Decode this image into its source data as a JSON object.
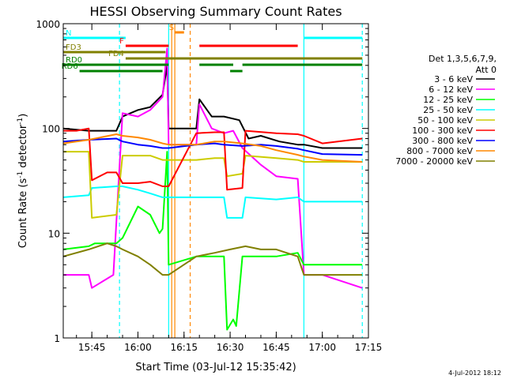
{
  "chart_data": {
    "type": "line",
    "title": "HESSI Observing Summary Count Rates",
    "xlabel": "Start Time (03-Jul-12 15:35:42)",
    "ylabel": "Count Rate (s-1 detector-1)",
    "ylabel_parts": {
      "main": "Count Rate (s",
      "sup1": "-1",
      "mid": " detector",
      "sup2": "-1",
      "end": ")"
    },
    "yscale": "log",
    "xlim": [
      "15:35:42",
      "17:15:00"
    ],
    "ylim": [
      1,
      1000
    ],
    "xticks": [
      "15:45",
      "16:00",
      "16:15",
      "16:30",
      "16:45",
      "17:00",
      "17:15"
    ],
    "yticks": [
      "1",
      "10",
      "100",
      "1000"
    ],
    "footer": "4-Jul-2012 18:12",
    "legend": {
      "placement": "right",
      "header1": "Det 1,3,5,6,7,9,",
      "header2": "Att 0"
    },
    "series": [
      {
        "name": "3 - 6 keV",
        "color": "#000000",
        "points": [
          [
            "15:35:42",
            100
          ],
          [
            "15:44",
            95
          ],
          [
            "15:53",
            95
          ],
          [
            "15:55",
            130
          ],
          [
            "16:00",
            150
          ],
          [
            "16:04",
            160
          ],
          [
            "16:08",
            210
          ],
          [
            "16:09:30",
            400
          ],
          [
            "16:10",
            100
          ],
          [
            "16:19",
            100
          ],
          [
            "16:20",
            190
          ],
          [
            "16:24",
            130
          ],
          [
            "16:28",
            130
          ],
          [
            "16:33",
            120
          ],
          [
            "16:36",
            80
          ],
          [
            "16:40",
            85
          ],
          [
            "16:46",
            75
          ],
          [
            "16:52",
            70
          ],
          [
            "16:54",
            70
          ],
          [
            "17:00",
            65
          ],
          [
            "17:13",
            65
          ]
        ]
      },
      {
        "name": "6 - 12 keV",
        "color": "#ff00ff",
        "points": [
          [
            "15:35:42",
            4
          ],
          [
            "15:44",
            4
          ],
          [
            "15:45",
            3
          ],
          [
            "15:52",
            4
          ],
          [
            "15:55",
            140
          ],
          [
            "16:00",
            130
          ],
          [
            "16:04",
            150
          ],
          [
            "16:08",
            200
          ],
          [
            "16:09:30",
            580
          ],
          [
            "16:10",
            70
          ],
          [
            "16:19",
            70
          ],
          [
            "16:20",
            170
          ],
          [
            "16:24",
            100
          ],
          [
            "16:28",
            90
          ],
          [
            "16:31",
            95
          ],
          [
            "16:34",
            65
          ],
          [
            "16:40",
            45
          ],
          [
            "16:45",
            35
          ],
          [
            "16:52",
            33
          ],
          [
            "16:54",
            4
          ],
          [
            "17:00",
            4
          ],
          [
            "17:13",
            3
          ]
        ]
      },
      {
        "name": "12 - 25 keV",
        "color": "#00ff00",
        "points": [
          [
            "15:35:42",
            7
          ],
          [
            "15:44",
            7.5
          ],
          [
            "15:46",
            8
          ],
          [
            "15:53",
            8
          ],
          [
            "15:55",
            9
          ],
          [
            "16:00",
            18
          ],
          [
            "16:04",
            15
          ],
          [
            "16:07",
            10
          ],
          [
            "16:08",
            11
          ],
          [
            "16:09:30",
            60
          ],
          [
            "16:10",
            5
          ],
          [
            "16:19",
            6
          ],
          [
            "16:25",
            6
          ],
          [
            "16:28",
            6
          ],
          [
            "16:29",
            1.2
          ],
          [
            "16:31",
            1.5
          ],
          [
            "16:32",
            1.3
          ],
          [
            "16:34",
            6
          ],
          [
            "16:40",
            6
          ],
          [
            "16:45",
            6
          ],
          [
            "16:52",
            6.5
          ],
          [
            "16:54",
            5
          ],
          [
            "17:00",
            5
          ],
          [
            "17:13",
            5
          ]
        ]
      },
      {
        "name": "25 - 50 keV",
        "color": "#00ffff",
        "points": [
          [
            "15:35:42",
            22
          ],
          [
            "15:44",
            23
          ],
          [
            "15:45",
            27
          ],
          [
            "15:53",
            28
          ],
          [
            "15:55",
            28
          ],
          [
            "16:00",
            26
          ],
          [
            "16:04",
            24
          ],
          [
            "16:08",
            22
          ],
          [
            "16:10",
            22
          ],
          [
            "16:19",
            22
          ],
          [
            "16:25",
            22
          ],
          [
            "16:28",
            22
          ],
          [
            "16:29",
            14
          ],
          [
            "16:34",
            14
          ],
          [
            "16:35",
            22
          ],
          [
            "16:45",
            21
          ],
          [
            "16:52",
            22
          ],
          [
            "16:54",
            20
          ],
          [
            "17:00",
            20
          ],
          [
            "17:13",
            20
          ]
        ]
      },
      {
        "name": "50 - 100 keV",
        "color": "#cccc00",
        "points": [
          [
            "15:35:42",
            60
          ],
          [
            "15:44",
            60
          ],
          [
            "15:45",
            14
          ],
          [
            "15:53",
            15
          ],
          [
            "15:55",
            55
          ],
          [
            "16:00",
            55
          ],
          [
            "16:04",
            55
          ],
          [
            "16:08",
            50
          ],
          [
            "16:10",
            50
          ],
          [
            "16:19",
            50
          ],
          [
            "16:25",
            52
          ],
          [
            "16:28",
            52
          ],
          [
            "16:29",
            35
          ],
          [
            "16:34",
            37
          ],
          [
            "16:35",
            55
          ],
          [
            "16:45",
            52
          ],
          [
            "16:52",
            50
          ],
          [
            "16:54",
            48
          ],
          [
            "17:00",
            48
          ],
          [
            "17:13",
            48
          ]
        ]
      },
      {
        "name": "100 - 300 keV",
        "color": "#ff0000",
        "points": [
          [
            "15:35:42",
            95
          ],
          [
            "15:40",
            95
          ],
          [
            "15:44",
            100
          ],
          [
            "15:45",
            32
          ],
          [
            "15:50",
            38
          ],
          [
            "15:53",
            38
          ],
          [
            "15:55",
            30
          ],
          [
            "16:00",
            30
          ],
          [
            "16:04",
            31
          ],
          [
            "16:08",
            28
          ],
          [
            "16:10",
            28
          ],
          [
            "16:19",
            90
          ],
          [
            "16:25",
            92
          ],
          [
            "16:28",
            92
          ],
          [
            "16:29",
            26
          ],
          [
            "16:34",
            27
          ],
          [
            "16:35",
            95
          ],
          [
            "16:45",
            90
          ],
          [
            "16:52",
            88
          ],
          [
            "16:54",
            85
          ],
          [
            "17:00",
            72
          ],
          [
            "17:13",
            80
          ]
        ]
      },
      {
        "name": "300 - 800 keV",
        "color": "#0000ff",
        "points": [
          [
            "15:35:42",
            75
          ],
          [
            "15:44",
            78
          ],
          [
            "15:53",
            80
          ],
          [
            "15:55",
            75
          ],
          [
            "16:00",
            70
          ],
          [
            "16:04",
            68
          ],
          [
            "16:08",
            65
          ],
          [
            "16:10",
            65
          ],
          [
            "16:19",
            70
          ],
          [
            "16:25",
            72
          ],
          [
            "16:28",
            70
          ],
          [
            "16:34",
            68
          ],
          [
            "16:40",
            70
          ],
          [
            "16:45",
            68
          ],
          [
            "16:52",
            64
          ],
          [
            "16:54",
            62
          ],
          [
            "17:00",
            57
          ],
          [
            "17:13",
            56
          ]
        ]
      },
      {
        "name": "800 - 7000 keV",
        "color": "#ff8800",
        "points": [
          [
            "15:35:42",
            72
          ],
          [
            "15:44",
            78
          ],
          [
            "15:53",
            88
          ],
          [
            "15:55",
            85
          ],
          [
            "16:00",
            82
          ],
          [
            "16:04",
            78
          ],
          [
            "16:08",
            72
          ],
          [
            "16:10",
            70
          ],
          [
            "16:19",
            70
          ],
          [
            "16:25",
            75
          ],
          [
            "16:28",
            75
          ],
          [
            "16:34",
            72
          ],
          [
            "16:40",
            68
          ],
          [
            "16:45",
            62
          ],
          [
            "16:52",
            56
          ],
          [
            "16:54",
            54
          ],
          [
            "17:00",
            50
          ],
          [
            "17:13",
            48
          ]
        ]
      },
      {
        "name": "7000 - 20000 keV",
        "color": "#808000",
        "points": [
          [
            "15:35:42",
            6
          ],
          [
            "15:44",
            7
          ],
          [
            "15:50",
            8
          ],
          [
            "15:53",
            7.5
          ],
          [
            "15:55",
            7
          ],
          [
            "16:00",
            6
          ],
          [
            "16:04",
            5
          ],
          [
            "16:08",
            4
          ],
          [
            "16:10",
            4
          ],
          [
            "16:19",
            6
          ],
          [
            "16:25",
            6.5
          ],
          [
            "16:30",
            7
          ],
          [
            "16:35",
            7.5
          ],
          [
            "16:40",
            7
          ],
          [
            "16:45",
            7
          ],
          [
            "16:52",
            6
          ],
          [
            "16:54",
            4
          ],
          [
            "17:00",
            4
          ],
          [
            "17:13",
            4
          ]
        ]
      }
    ],
    "bars": [
      {
        "label": "N",
        "color": "#00ffff",
        "segments": [
          [
            "15:35:42",
            "15:56"
          ],
          [
            "16:54",
            "17:13"
          ]
        ]
      },
      {
        "label": "S",
        "color": "#ff8800",
        "segments": [
          [
            "16:12",
            "16:15"
          ]
        ]
      },
      {
        "label": "F",
        "color": "#ff0000",
        "segments": [
          [
            "15:56",
            "16:10"
          ],
          [
            "16:20",
            "16:52"
          ]
        ]
      },
      {
        "label": "FD3",
        "color": "#808000",
        "segments": [
          [
            "15:35:42",
            "16:09"
          ]
        ]
      },
      {
        "label": "FD4",
        "color": "#808000",
        "segments": [
          [
            "15:56",
            "17:13"
          ]
        ]
      },
      {
        "label": "RD0",
        "color": "#008000",
        "segments": [
          [
            "15:35:42",
            "16:10"
          ],
          [
            "16:20",
            "16:31"
          ],
          [
            "16:34",
            "17:13"
          ]
        ]
      },
      {
        "label": "RD6",
        "color": "#008000",
        "segments": [
          [
            "15:41",
            "16:08"
          ],
          [
            "16:30",
            "16:34"
          ]
        ]
      }
    ],
    "markers": [
      {
        "time": "15:54",
        "color": "#00ffff",
        "style": "dashed"
      },
      {
        "time": "16:10",
        "color": "#00ffff",
        "style": "solid"
      },
      {
        "time": "16:11",
        "color": "#ff8800",
        "style": "solid"
      },
      {
        "time": "16:12",
        "color": "#ff8800",
        "style": "solid"
      },
      {
        "time": "16:17",
        "color": "#ff8800",
        "style": "dashed"
      },
      {
        "time": "16:54",
        "color": "#00ffff",
        "style": "solid"
      },
      {
        "time": "17:13",
        "color": "#00ffff",
        "style": "dashed"
      }
    ]
  }
}
